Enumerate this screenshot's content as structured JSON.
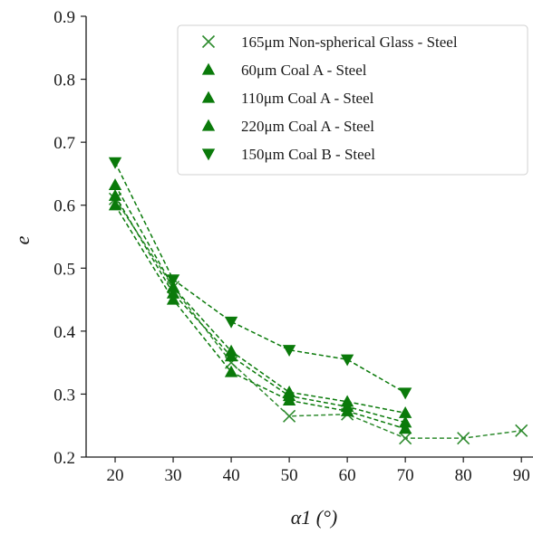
{
  "chart_data": {
    "type": "line",
    "xlabel": "α1 (°)",
    "ylabel": "e",
    "xlim": [
      15,
      92
    ],
    "ylim": [
      0.2,
      0.9
    ],
    "xticks": [
      20,
      30,
      40,
      50,
      60,
      70,
      80,
      90
    ],
    "yticks": [
      0.2,
      0.3,
      0.4,
      0.5,
      0.6,
      0.7,
      0.8,
      0.9
    ],
    "grid": false,
    "legend_position": "top-right",
    "series": [
      {
        "name": "165μm Non-spherical Glass - Steel",
        "marker": "x",
        "color": "#2e8b2e",
        "line_style": "dashed",
        "x": [
          20,
          30,
          40,
          50,
          60,
          70,
          80,
          90
        ],
        "y": [
          0.61,
          0.47,
          0.35,
          0.265,
          0.268,
          0.23,
          0.23,
          0.242
        ]
      },
      {
        "name": "60μm Coal A - Steel",
        "marker": "triangle-up",
        "color": "#0a7a0a",
        "line_style": "dashed",
        "x": [
          20,
          30,
          40,
          50,
          60,
          70
        ],
        "y": [
          0.6,
          0.45,
          0.335,
          0.29,
          0.273,
          0.245
        ]
      },
      {
        "name": "110μm Coal A - Steel",
        "marker": "triangle-up",
        "color": "#0a7a0a",
        "line_style": "dashed",
        "x": [
          20,
          30,
          40,
          50,
          60,
          70
        ],
        "y": [
          0.615,
          0.46,
          0.36,
          0.297,
          0.28,
          0.255
        ]
      },
      {
        "name": "220μm Coal A - Steel",
        "marker": "triangle-up",
        "color": "#0a7a0a",
        "line_style": "dashed",
        "x": [
          20,
          30,
          40,
          50,
          60,
          70
        ],
        "y": [
          0.632,
          0.47,
          0.368,
          0.303,
          0.288,
          0.27
        ]
      },
      {
        "name": "150μm Coal B - Steel",
        "marker": "triangle-down",
        "color": "#0a7a0a",
        "line_style": "dashed",
        "x": [
          20,
          30,
          40,
          50,
          60,
          70
        ],
        "y": [
          0.668,
          0.482,
          0.415,
          0.37,
          0.355,
          0.302
        ]
      }
    ]
  }
}
